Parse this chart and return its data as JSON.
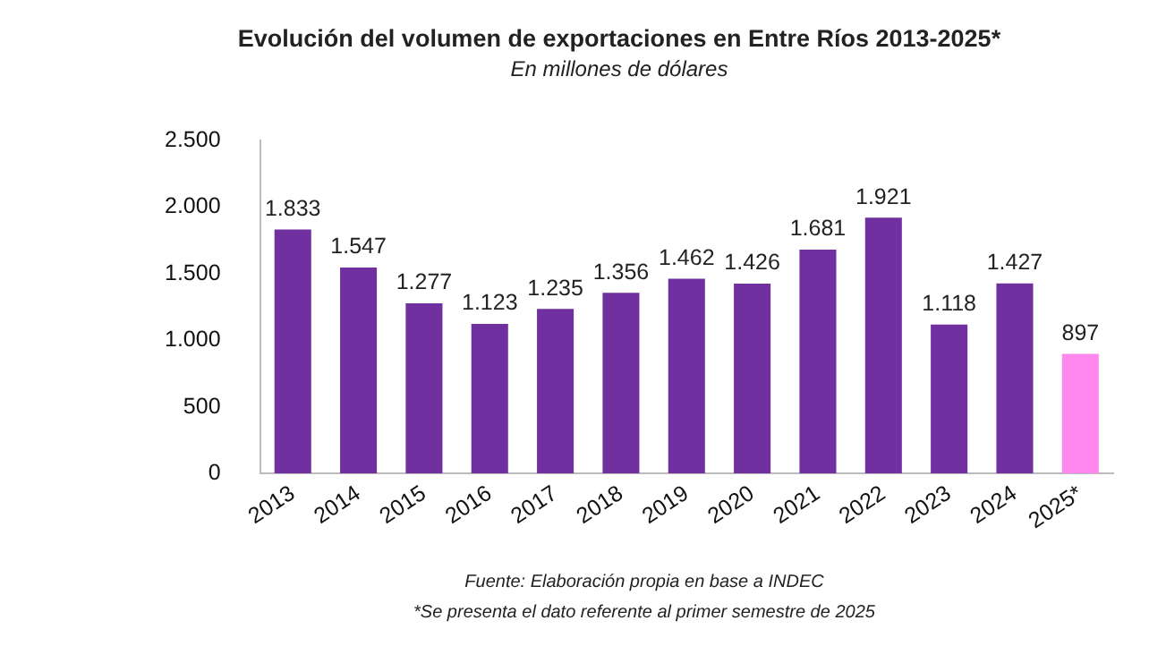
{
  "chart_data": {
    "type": "bar",
    "title": "Evolución del volumen de exportaciones en Entre Ríos 2013-2025*",
    "subtitle": "En millones de dólares",
    "categories": [
      "2013",
      "2014",
      "2015",
      "2016",
      "2017",
      "2018",
      "2019",
      "2020",
      "2021",
      "2022",
      "2023",
      "2024",
      "2025*"
    ],
    "values": [
      1833,
      1547,
      1277,
      1123,
      1235,
      1356,
      1462,
      1426,
      1681,
      1921,
      1118,
      1427,
      897
    ],
    "value_labels": [
      "1.833",
      "1.547",
      "1.277",
      "1.123",
      "1.235",
      "1.356",
      "1.462",
      "1.426",
      "1.681",
      "1.921",
      "1.118",
      "1.427",
      "897"
    ],
    "colors": [
      "#7030a0",
      "#7030a0",
      "#7030a0",
      "#7030a0",
      "#7030a0",
      "#7030a0",
      "#7030a0",
      "#7030a0",
      "#7030a0",
      "#7030a0",
      "#7030a0",
      "#7030a0",
      "#ff88ee"
    ],
    "ylim": [
      0,
      2500
    ],
    "yticks": [
      0,
      500,
      {
        "value": 1000,
        "label": "1.000"
      },
      {
        "value": 1500,
        "label": "1.500"
      },
      {
        "value": 2000,
        "label": "2.000"
      },
      {
        "value": 2500,
        "label": "2.500"
      }
    ],
    "grid": false,
    "legend": false,
    "annotations": [
      "Fuente: Elaboración propia en base a INDEC",
      "*Se presenta el dato referente al primer semestre de 2025"
    ]
  }
}
